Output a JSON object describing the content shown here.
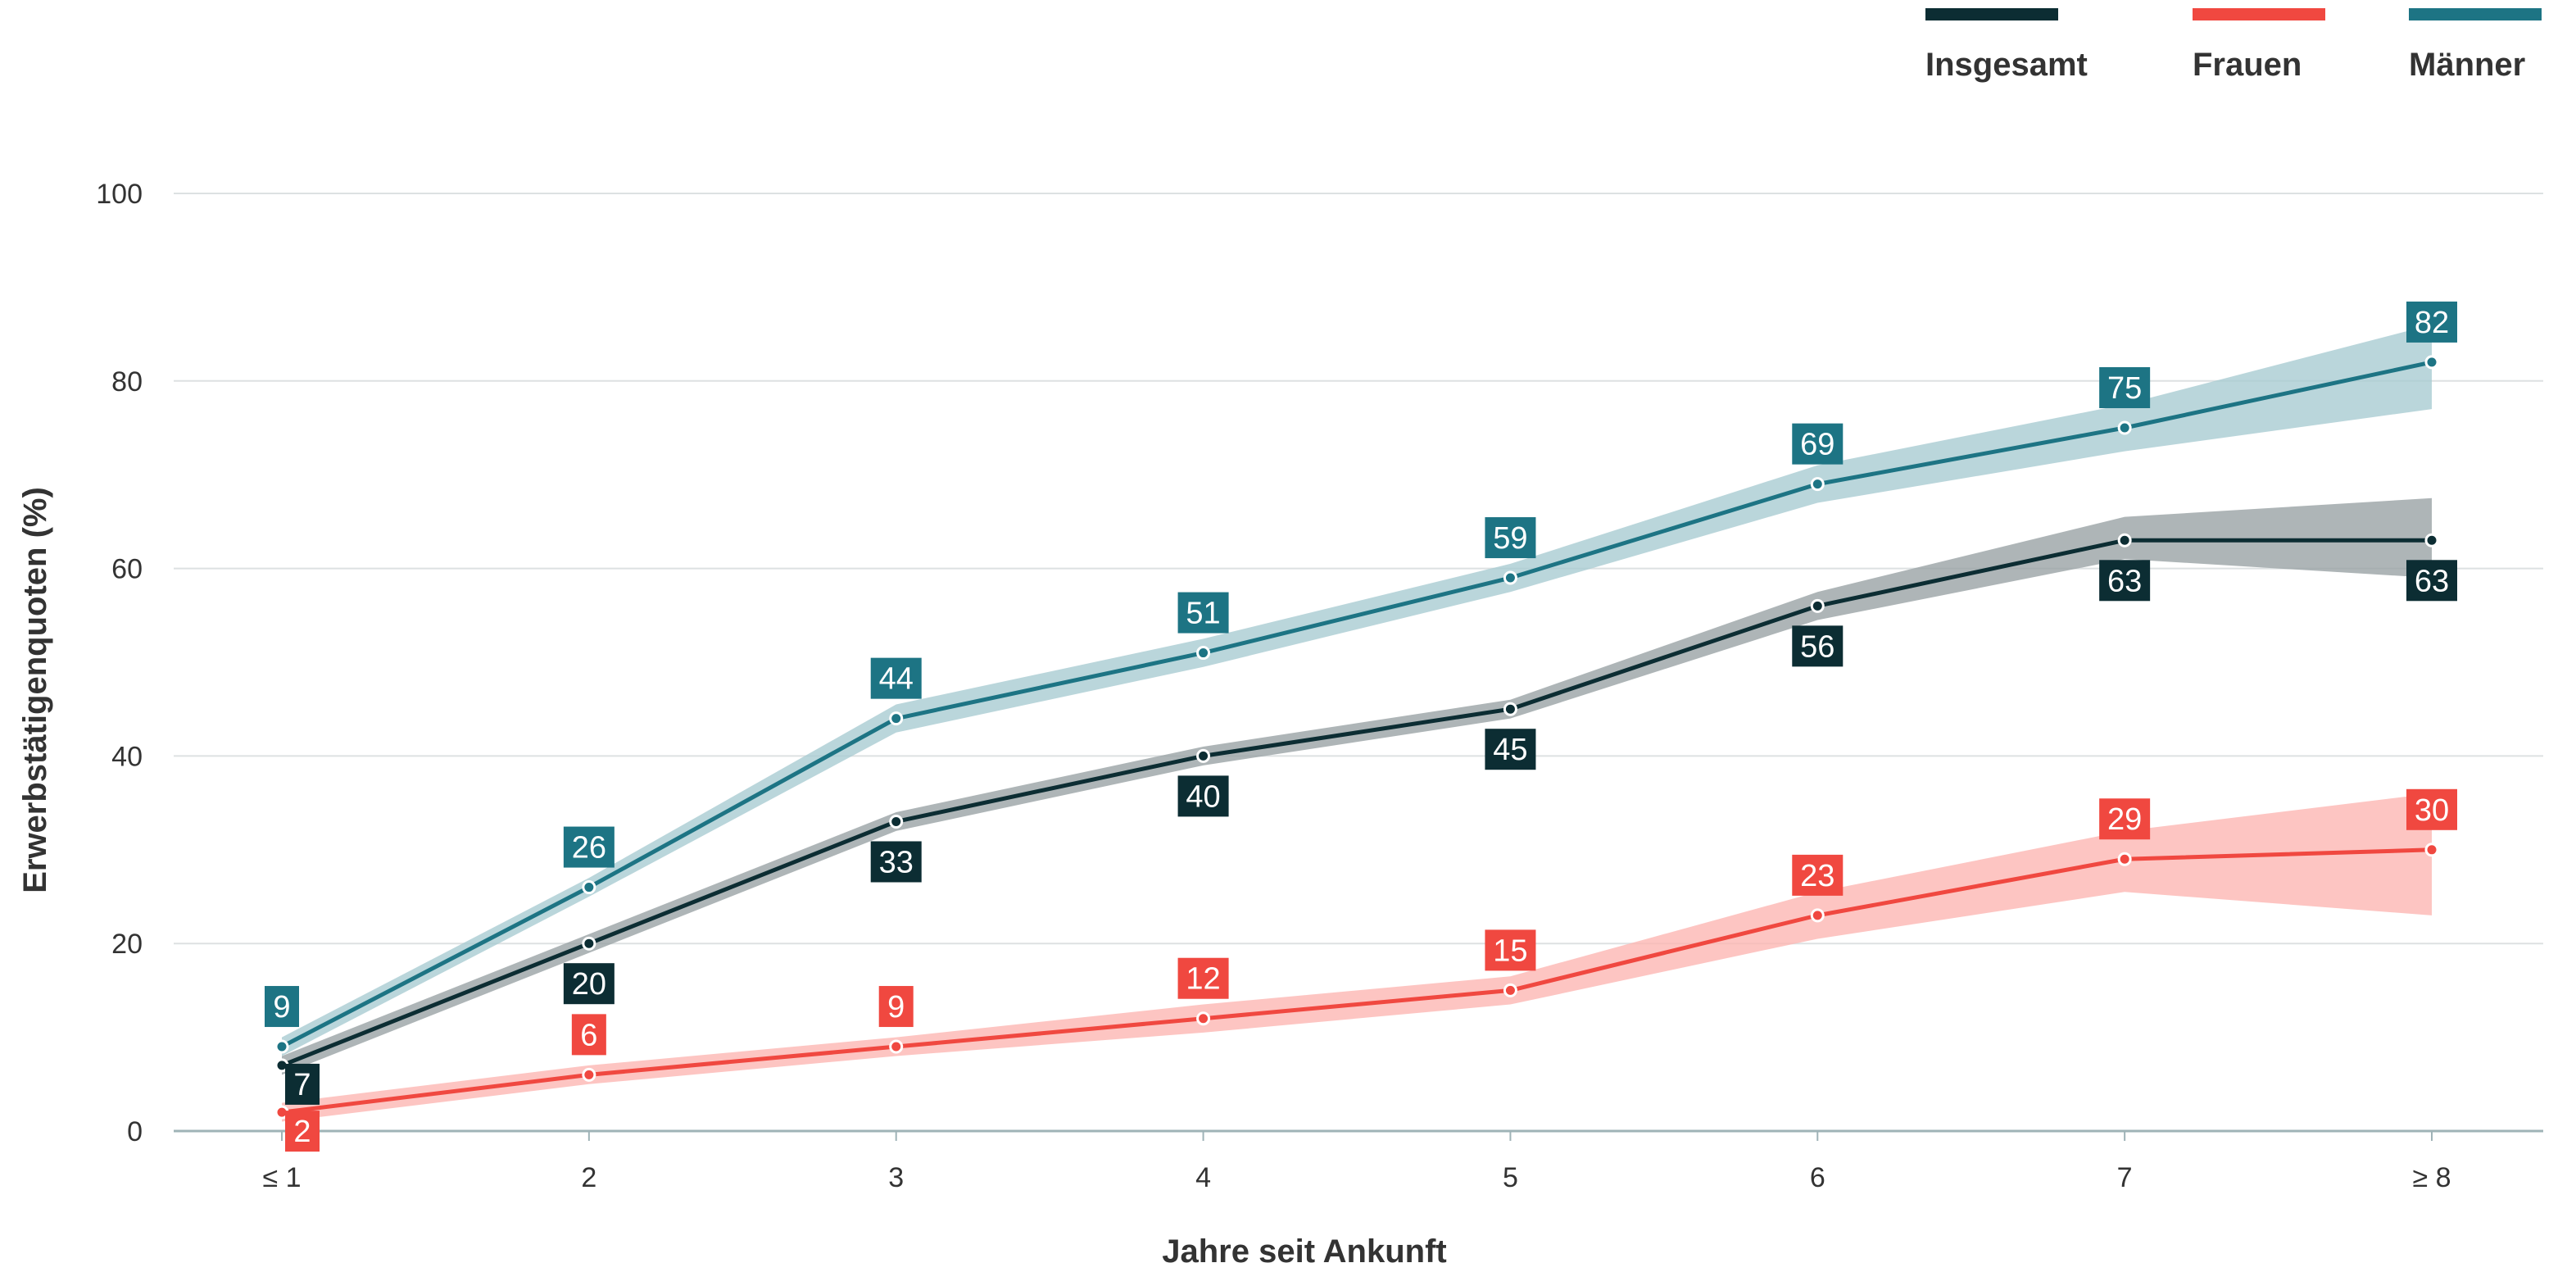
{
  "chart_data": {
    "type": "line",
    "xlabel": "Jahre seit Ankunft",
    "ylabel": "Erwerbstätigenquoten (%)",
    "categories": [
      "≤ 1",
      "2",
      "3",
      "4",
      "5",
      "6",
      "7",
      "≥ 8"
    ],
    "ylim": [
      0,
      100
    ],
    "yticks": [
      "0",
      "20",
      "40",
      "60",
      "80",
      "100"
    ],
    "grid": true,
    "legend_position": "top-right",
    "series": [
      {
        "name": "Insgesamt",
        "color": "#0c2d33",
        "band_color": "#9aa3a5",
        "values": [
          7,
          20,
          33,
          40,
          45,
          56,
          63,
          63
        ],
        "lower": [
          6,
          19,
          32,
          39,
          44,
          54.5,
          61,
          59
        ],
        "upper": [
          8,
          21,
          34,
          41,
          46,
          57.5,
          65.5,
          67.5
        ],
        "label_side": [
          "below",
          "below",
          "below",
          "below",
          "below",
          "below",
          "below",
          "below"
        ]
      },
      {
        "name": "Frauen",
        "color": "#f04840",
        "band_color": "#fcb6b3",
        "values": [
          2,
          6,
          9,
          12,
          15,
          23,
          29,
          30
        ],
        "lower": [
          1,
          5,
          8,
          10.5,
          13.5,
          20.5,
          25.5,
          23
        ],
        "upper": [
          3,
          7,
          10,
          13.5,
          16.5,
          25.5,
          32,
          36
        ],
        "label_side": [
          "below",
          "above",
          "above",
          "above",
          "above",
          "above",
          "above",
          "above"
        ]
      },
      {
        "name": "Männer",
        "color": "#1d7484",
        "band_color": "#a9ccd2",
        "values": [
          9,
          26,
          44,
          51,
          59,
          69,
          75,
          82
        ],
        "lower": [
          8,
          25,
          42.5,
          49.5,
          57.5,
          67,
          72.5,
          77
        ],
        "upper": [
          10,
          27,
          45.5,
          52.5,
          60.5,
          71,
          77.5,
          86
        ],
        "label_side": [
          "above",
          "above",
          "above",
          "above",
          "above",
          "above",
          "above",
          "above"
        ]
      }
    ]
  }
}
